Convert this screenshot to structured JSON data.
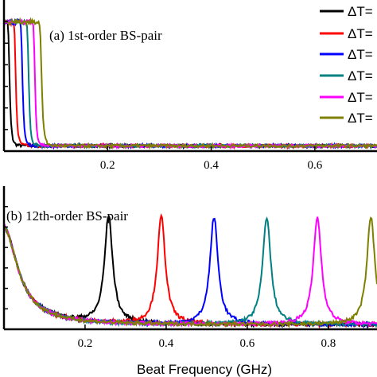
{
  "chart_data": [
    {
      "type": "line",
      "panel": "a",
      "title": "(a) 1st-order BS-pair",
      "xlabel": "",
      "ylabel": "",
      "xlim": [
        0.0,
        0.72
      ],
      "ylim": [
        0.0,
        1.0
      ],
      "xticks": [
        0.2,
        0.4,
        0.6
      ],
      "xtick_labels": [
        "0.2",
        "0.4",
        "0.6"
      ],
      "grid": false,
      "legend_position": "top-right",
      "series": [
        {
          "name": "ΔT=",
          "color": "#000000",
          "peak_x": 0.005,
          "width": 0.006,
          "peak": 0.82
        },
        {
          "name": "ΔT=",
          "color": "#ff0000",
          "peak_x": 0.017,
          "width": 0.006,
          "peak": 0.82
        },
        {
          "name": "ΔT=",
          "color": "#0000ff",
          "peak_x": 0.03,
          "width": 0.006,
          "peak": 0.82
        },
        {
          "name": "ΔT=",
          "color": "#008080",
          "peak_x": 0.042,
          "width": 0.006,
          "peak": 0.82
        },
        {
          "name": "ΔT=",
          "color": "#ff00ff",
          "peak_x": 0.054,
          "width": 0.006,
          "peak": 0.82
        },
        {
          "name": "ΔT=",
          "color": "#808000",
          "peak_x": 0.066,
          "width": 0.007,
          "peak": 0.82
        }
      ]
    },
    {
      "type": "line",
      "panel": "b",
      "title": "(b) 12th-order BS-pair",
      "xlabel": "Beat Frequency (GHz)",
      "ylabel": "",
      "xlim": [
        0.0,
        0.92
      ],
      "ylim": [
        0.0,
        1.0
      ],
      "xticks": [
        0.2,
        0.4,
        0.6,
        0.8
      ],
      "xtick_labels": [
        "0.2",
        "0.4",
        "0.6",
        "0.8"
      ],
      "grid": false,
      "series": [
        {
          "name": "black",
          "color": "#000000",
          "peak_x": 0.258,
          "width": 0.012,
          "peak": 0.75
        },
        {
          "name": "red",
          "color": "#ff0000",
          "peak_x": 0.388,
          "width": 0.012,
          "peak": 0.75
        },
        {
          "name": "blue",
          "color": "#0000ff",
          "peak_x": 0.518,
          "width": 0.012,
          "peak": 0.75
        },
        {
          "name": "teal",
          "color": "#008080",
          "peak_x": 0.648,
          "width": 0.012,
          "peak": 0.75
        },
        {
          "name": "magenta",
          "color": "#ff00ff",
          "peak_x": 0.773,
          "width": 0.012,
          "peak": 0.75
        },
        {
          "name": "olive",
          "color": "#808000",
          "peak_x": 0.905,
          "width": 0.012,
          "peak": 0.75
        }
      ]
    }
  ]
}
